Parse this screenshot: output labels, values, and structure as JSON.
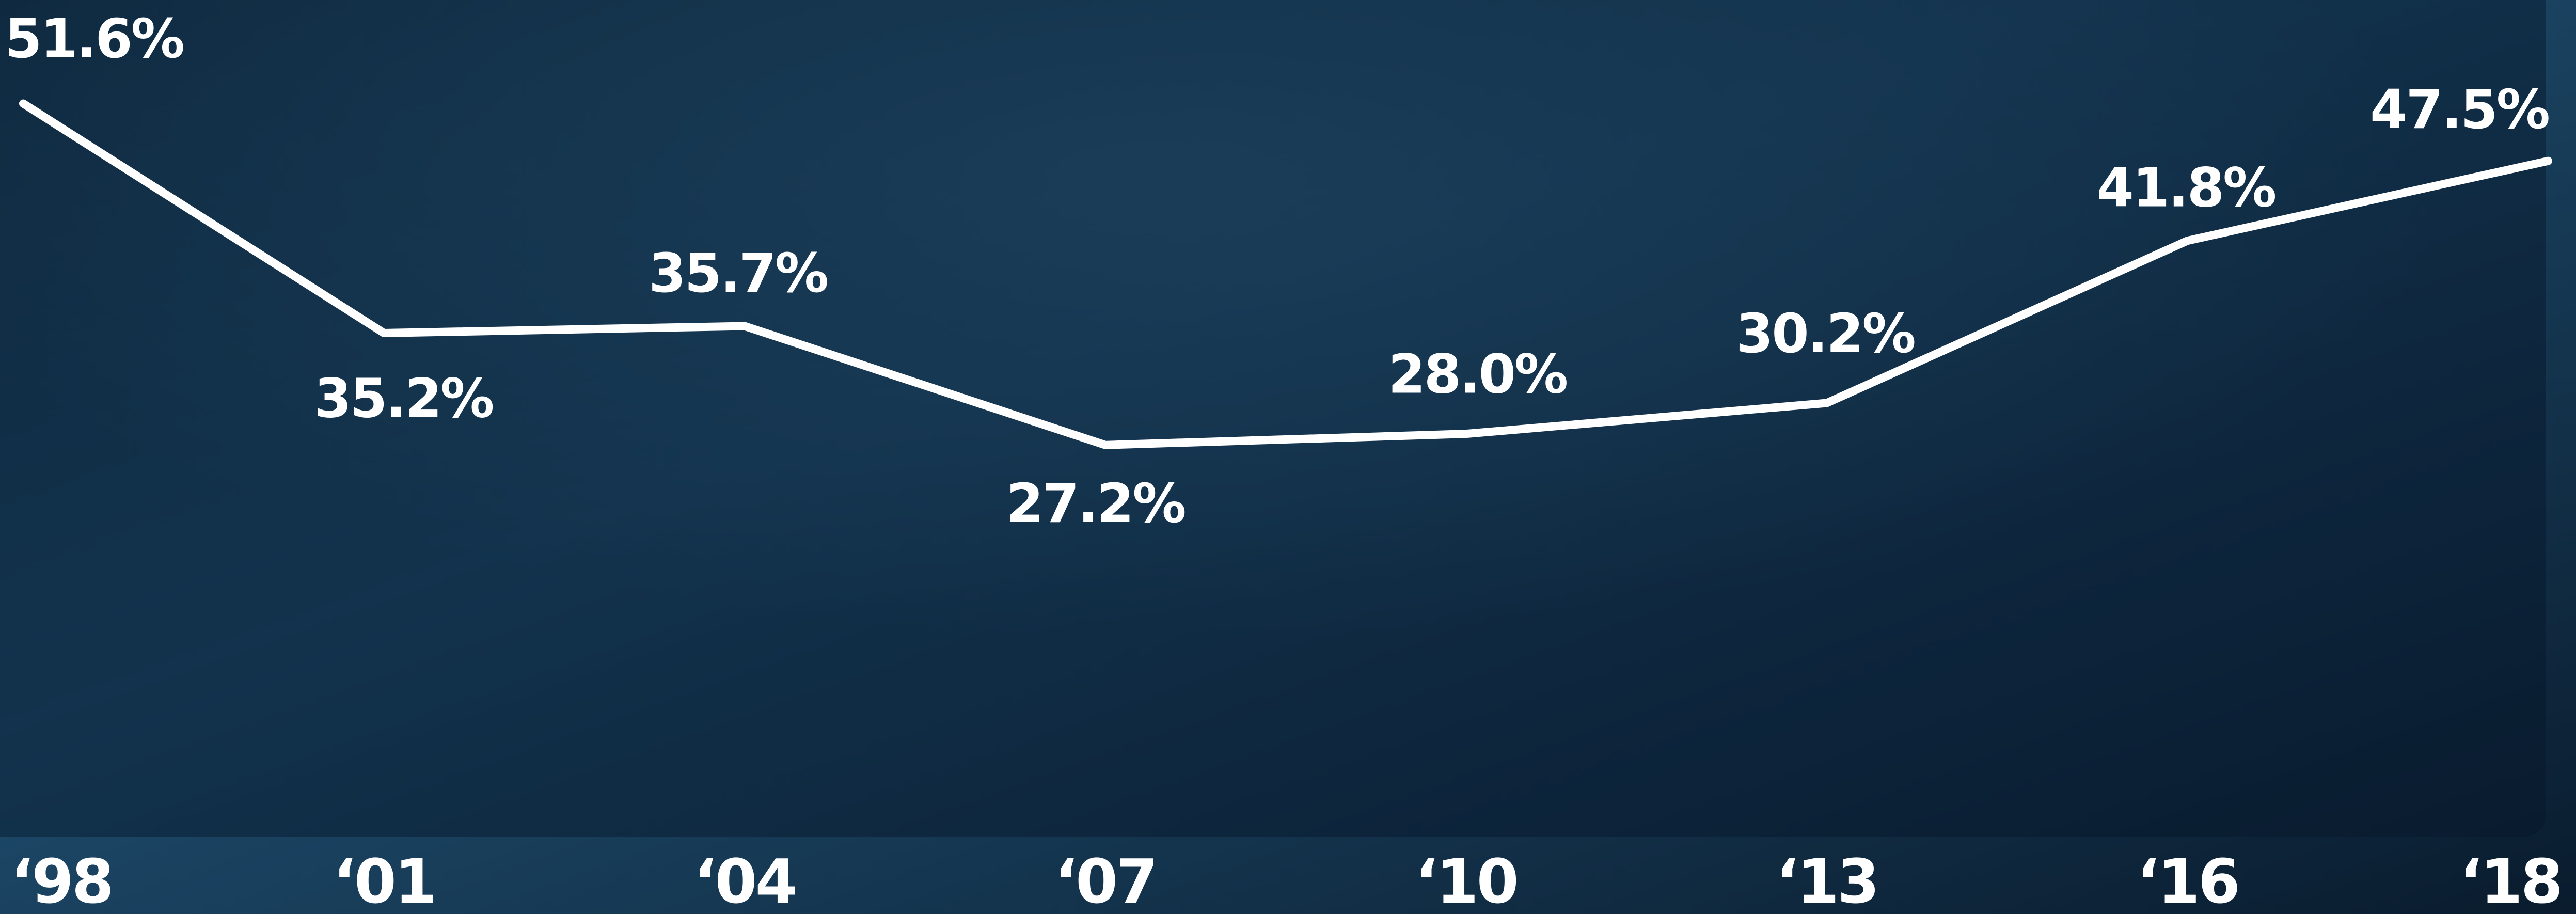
{
  "chart_data": {
    "type": "line",
    "categories": [
      "‘98",
      "‘01",
      "‘04",
      "‘07",
      "‘10",
      "‘13",
      "‘16",
      "‘18"
    ],
    "series": [
      {
        "color": "#ffffff",
        "values": [
          51.6,
          35.2,
          35.7,
          27.2,
          28.0,
          30.2,
          41.8,
          47.5
        ],
        "value_labels": [
          "51.6%",
          "35.2%",
          "35.7%",
          "27.2%",
          "28.0%",
          "30.2%",
          "41.8%",
          "47.5%"
        ]
      }
    ],
    "ylim": [
      0,
      59
    ]
  }
}
